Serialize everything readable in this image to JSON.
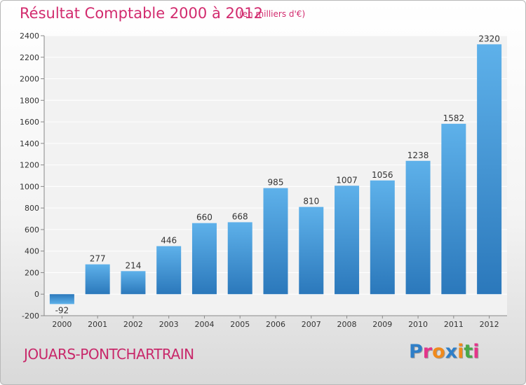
{
  "header": {
    "title": "Résultat Comptable 2000 à 2012",
    "subtitle": "(en milliers d'€)"
  },
  "footer": {
    "town": "JOUARS-PONTCHARTRAIN",
    "logo_letters": [
      "P",
      "r",
      "o",
      "x",
      "i",
      "t",
      "i"
    ]
  },
  "colors": {
    "title": "#d22b6e",
    "bar": "#3b8fd6",
    "bar_light": "#5eb1ea",
    "bar_dark": "#2b78bb",
    "logo": [
      "#2f7fc8",
      "#e4358a",
      "#f08a1c",
      "#2f7fc8",
      "#f08a1c",
      "#49a848",
      "#e4358a"
    ]
  },
  "chart_data": {
    "type": "bar",
    "categories": [
      "2000",
      "2001",
      "2002",
      "2003",
      "2004",
      "2005",
      "2006",
      "2007",
      "2008",
      "2009",
      "2010",
      "2011",
      "2012"
    ],
    "values": [
      -92,
      277,
      214,
      446,
      660,
      668,
      985,
      810,
      1007,
      1056,
      1238,
      1582,
      2320
    ],
    "value_labels": [
      "-92",
      "277",
      "214",
      "446",
      "660",
      "668",
      "985",
      "810",
      "1007",
      "1056",
      "1238",
      "1582",
      "2320"
    ],
    "yticks": [
      -200,
      0,
      200,
      400,
      600,
      800,
      1000,
      1200,
      1400,
      1600,
      1800,
      2000,
      2200,
      2400
    ],
    "ytick_labels": [
      "-200",
      "0",
      "200",
      "400",
      "600",
      "800",
      "1000",
      "1200",
      "1400",
      "1600",
      "1800",
      "2000",
      "2200",
      "2400"
    ],
    "ylim": [
      -200,
      2400
    ],
    "grid": true,
    "title": "Résultat Comptable 2000 à 2012"
  }
}
